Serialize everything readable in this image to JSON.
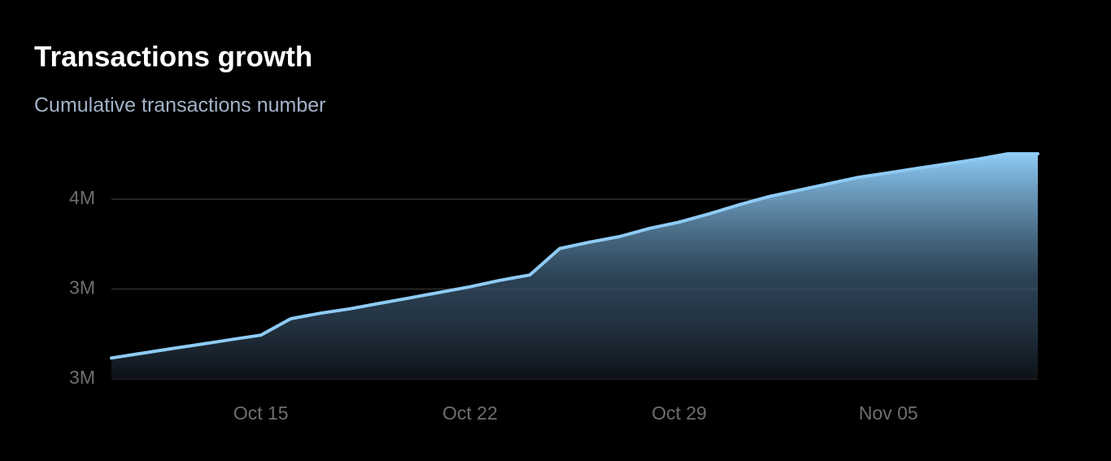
{
  "chart_data": {
    "type": "area",
    "title": "Transactions growth",
    "subtitle": "Cumulative transactions number",
    "categories": [
      null,
      null,
      null,
      null,
      null,
      "Oct 15",
      null,
      null,
      null,
      null,
      null,
      null,
      "Oct 22",
      null,
      null,
      null,
      null,
      null,
      null,
      "Oct 29",
      null,
      null,
      null,
      null,
      null,
      null,
      "Nov 05",
      null,
      null,
      null,
      null,
      null
    ],
    "values": [
      2763000,
      2799000,
      2835000,
      2870000,
      2906000,
      2941000,
      3069000,
      3112000,
      3147000,
      3190000,
      3232000,
      3275000,
      3318000,
      3368000,
      3410000,
      3616000,
      3666000,
      3709000,
      3773000,
      3822000,
      3886000,
      3957000,
      4021000,
      4071000,
      4121000,
      4171000,
      4206000,
      4242000,
      4277000,
      4313000,
      4355000,
      4355000
    ],
    "color": "#8ecbf5",
    "ylim": [
      2600000,
      4400000
    ],
    "yticks": [
      {
        "value": 2600000,
        "label": "3M"
      },
      {
        "value": 3300000,
        "label": "3M"
      },
      {
        "value": 4000000,
        "label": "4M"
      }
    ],
    "grid": true
  }
}
